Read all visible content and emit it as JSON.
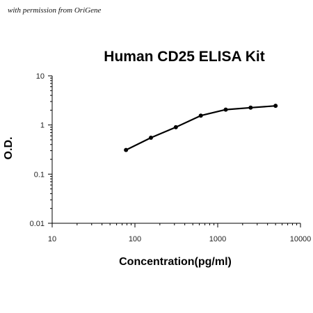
{
  "watermark": "with permission from OriGene",
  "chart_data": {
    "type": "line",
    "title": "Human CD25 ELISA Kit",
    "xlabel": "Concentration(pg/ml)",
    "ylabel": "O.D.",
    "xscale": "log",
    "yscale": "log",
    "xlim": [
      10,
      10000
    ],
    "ylim": [
      0.01,
      10
    ],
    "xticks": [
      10,
      100,
      1000,
      10000
    ],
    "yticks": [
      0.01,
      0.1,
      1,
      10
    ],
    "xtick_labels": [
      "10",
      "100",
      "1000",
      "10000"
    ],
    "ytick_labels": [
      "0.01",
      "0.1",
      "1",
      "10"
    ],
    "grid": false,
    "legend": "none",
    "series": [
      {
        "color": "#000000",
        "marker": "circle",
        "x": [
          78,
          156,
          312,
          625,
          1250,
          2500,
          5000
        ],
        "y": [
          0.31,
          0.55,
          0.9,
          1.55,
          2.05,
          2.25,
          2.45
        ]
      }
    ]
  }
}
